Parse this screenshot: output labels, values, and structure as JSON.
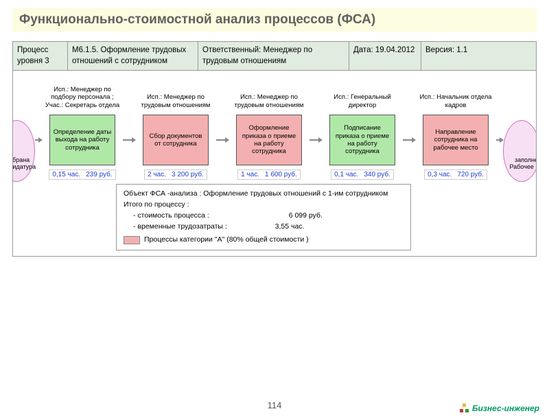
{
  "title": "Функционально-стоимостной анализ процессов (ФСА)",
  "title_bg": "#fcfce0",
  "title_color": "#606060",
  "header": {
    "bg": "#e0ece0",
    "cells": [
      "Процесс уровня 3",
      "М6.1.5.  Оформление трудовых отношений с сотрудником",
      "Ответственный: Менеджер по трудовым отношениям",
      "Дата: 19.04.2012",
      "Версия: 1.1"
    ]
  },
  "terminators": {
    "start_label": "выбрана Кандидатура",
    "end_label": "заполне Рабочее ме",
    "fill": "#f8e0f4"
  },
  "steps": [
    {
      "performer": "Исп.: Менеджер по подбору персонала ; Учас.: Секретарь отдела",
      "name": "Определение даты выхода на работу сотрудника",
      "color": "#b0e8a8",
      "time": "0,15 час.",
      "cost": "239 руб."
    },
    {
      "performer": "Исп.: Менеджер по трудовым отношениям",
      "name": "Сбор документов от сотрудника",
      "color": "#f4b0b0",
      "time": "2 час.",
      "cost": "3 200 руб."
    },
    {
      "performer": "Исп.: Менеджер по трудовым отношениям",
      "name": "Оформление приказа о приеме на работу сотрудника",
      "color": "#f4b0b0",
      "time": "1 час.",
      "cost": "1 600 руб."
    },
    {
      "performer": "Исп.: Генеральный директор",
      "name": "Подписание приказа о приеме на работу сотрудника",
      "color": "#b0e8a8",
      "time": "0,1 час.",
      "cost": "340 руб."
    },
    {
      "performer": "Исп.: Начальник отдела кадров",
      "name": "Направление сотрудника на рабочее место",
      "color": "#f4b0b0",
      "time": "0,3 час.",
      "cost": "720 руб."
    }
  ],
  "summary": {
    "line1": "Объект ФСА -анализа :  Оформление трудовых отношений с    1-им сотрудником",
    "line2": "Итого по процессу   :",
    "cost_label": "- стоимость процесса  :",
    "cost_value": "6 099  руб.",
    "time_label": "- временные трудозатраты    :",
    "time_value": "3,55  час.",
    "legend_color": "#f4b0b0",
    "legend_text": "Процессы категории   \"А\" (80% общей стоимости  )"
  },
  "page_number": "114",
  "brand": "Бизнес-инженер"
}
